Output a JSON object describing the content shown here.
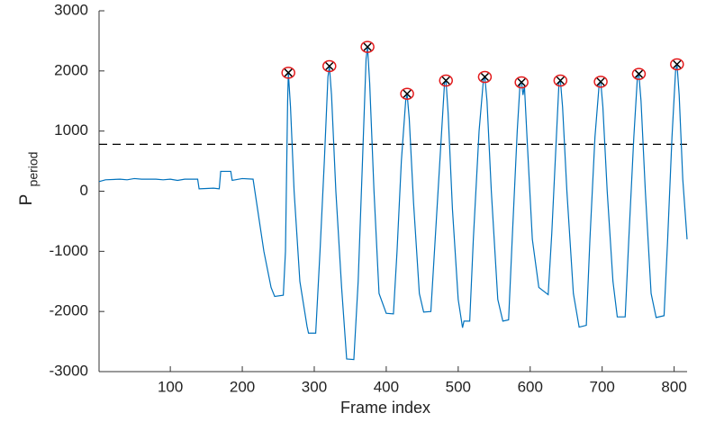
{
  "chart_data": {
    "type": "line",
    "xlabel": "Frame index",
    "ylabel": "P",
    "ylabel_subscript": "period",
    "xlim": [
      1,
      818
    ],
    "ylim": [
      -3000,
      3000
    ],
    "xticks": [
      100,
      200,
      300,
      400,
      500,
      600,
      700,
      800
    ],
    "yticks": [
      -3000,
      -2000,
      -1000,
      0,
      1000,
      2000,
      3000
    ],
    "threshold": 780,
    "threshold_color": "#000000",
    "line": {
      "color": "#0072bd",
      "x": [
        1,
        10,
        30,
        40,
        50,
        60,
        80,
        90,
        100,
        110,
        120,
        138,
        140,
        160,
        168,
        170,
        184,
        186,
        200,
        215,
        220,
        230,
        240,
        245,
        257,
        260,
        263,
        264,
        267,
        272,
        280,
        290,
        292,
        302,
        308,
        314,
        319,
        321,
        324,
        330,
        338,
        345,
        355,
        361,
        367,
        372,
        374,
        377,
        383,
        390,
        400,
        410,
        415,
        421,
        427,
        429,
        432,
        438,
        446,
        452,
        462,
        468,
        476,
        481,
        483,
        486,
        492,
        500,
        506,
        508,
        516,
        521,
        529,
        535,
        537,
        540,
        546,
        555,
        562,
        570,
        575,
        582,
        586,
        588,
        590,
        592,
        596,
        603,
        612,
        625,
        630,
        636,
        640,
        642,
        645,
        651,
        660,
        668,
        678,
        683,
        690,
        696,
        698,
        701,
        707,
        715,
        721,
        732,
        737,
        744,
        749,
        751,
        754,
        760,
        768,
        775,
        786,
        791,
        797,
        802,
        804,
        807,
        812,
        818
      ],
      "values": [
        160,
        190,
        200,
        190,
        210,
        200,
        200,
        190,
        200,
        180,
        200,
        200,
        40,
        50,
        40,
        330,
        330,
        180,
        210,
        200,
        -200,
        -1000,
        -1600,
        -1750,
        -1730,
        -1000,
        1500,
        1970,
        1400,
        0,
        -1500,
        -2250,
        -2360,
        -2360,
        -1000,
        500,
        1900,
        2080,
        1600,
        0,
        -1600,
        -2790,
        -2800,
        -1500,
        500,
        2200,
        2400,
        1800,
        0,
        -1700,
        -2030,
        -2040,
        -1000,
        500,
        1500,
        1620,
        1200,
        -200,
        -1700,
        -2010,
        -2000,
        -800,
        800,
        1800,
        1840,
        1300,
        -300,
        -1800,
        -2270,
        -2160,
        -2160,
        -800,
        1000,
        1850,
        1900,
        1500,
        0,
        -1800,
        -2160,
        -2140,
        -800,
        1000,
        1800,
        1810,
        1600,
        1750,
        800,
        -800,
        -1600,
        -1720,
        -700,
        800,
        1800,
        1840,
        1400,
        0,
        -1700,
        -2260,
        -2230,
        -800,
        900,
        1800,
        1820,
        1400,
        0,
        -1500,
        -2090,
        -2090,
        -800,
        900,
        1900,
        1950,
        1500,
        0,
        -1700,
        -2100,
        -2070,
        -800,
        900,
        2000,
        2110,
        1600,
        200,
        -800
      ]
    },
    "peaks": {
      "circle_color": "#e31a1c",
      "cross_color": "#000000",
      "x": [
        264,
        321,
        374,
        429,
        483,
        537,
        588,
        642,
        698,
        751,
        804
      ],
      "values": [
        1970,
        2080,
        2400,
        1620,
        1840,
        1900,
        1810,
        1840,
        1820,
        1950,
        2110
      ]
    }
  }
}
